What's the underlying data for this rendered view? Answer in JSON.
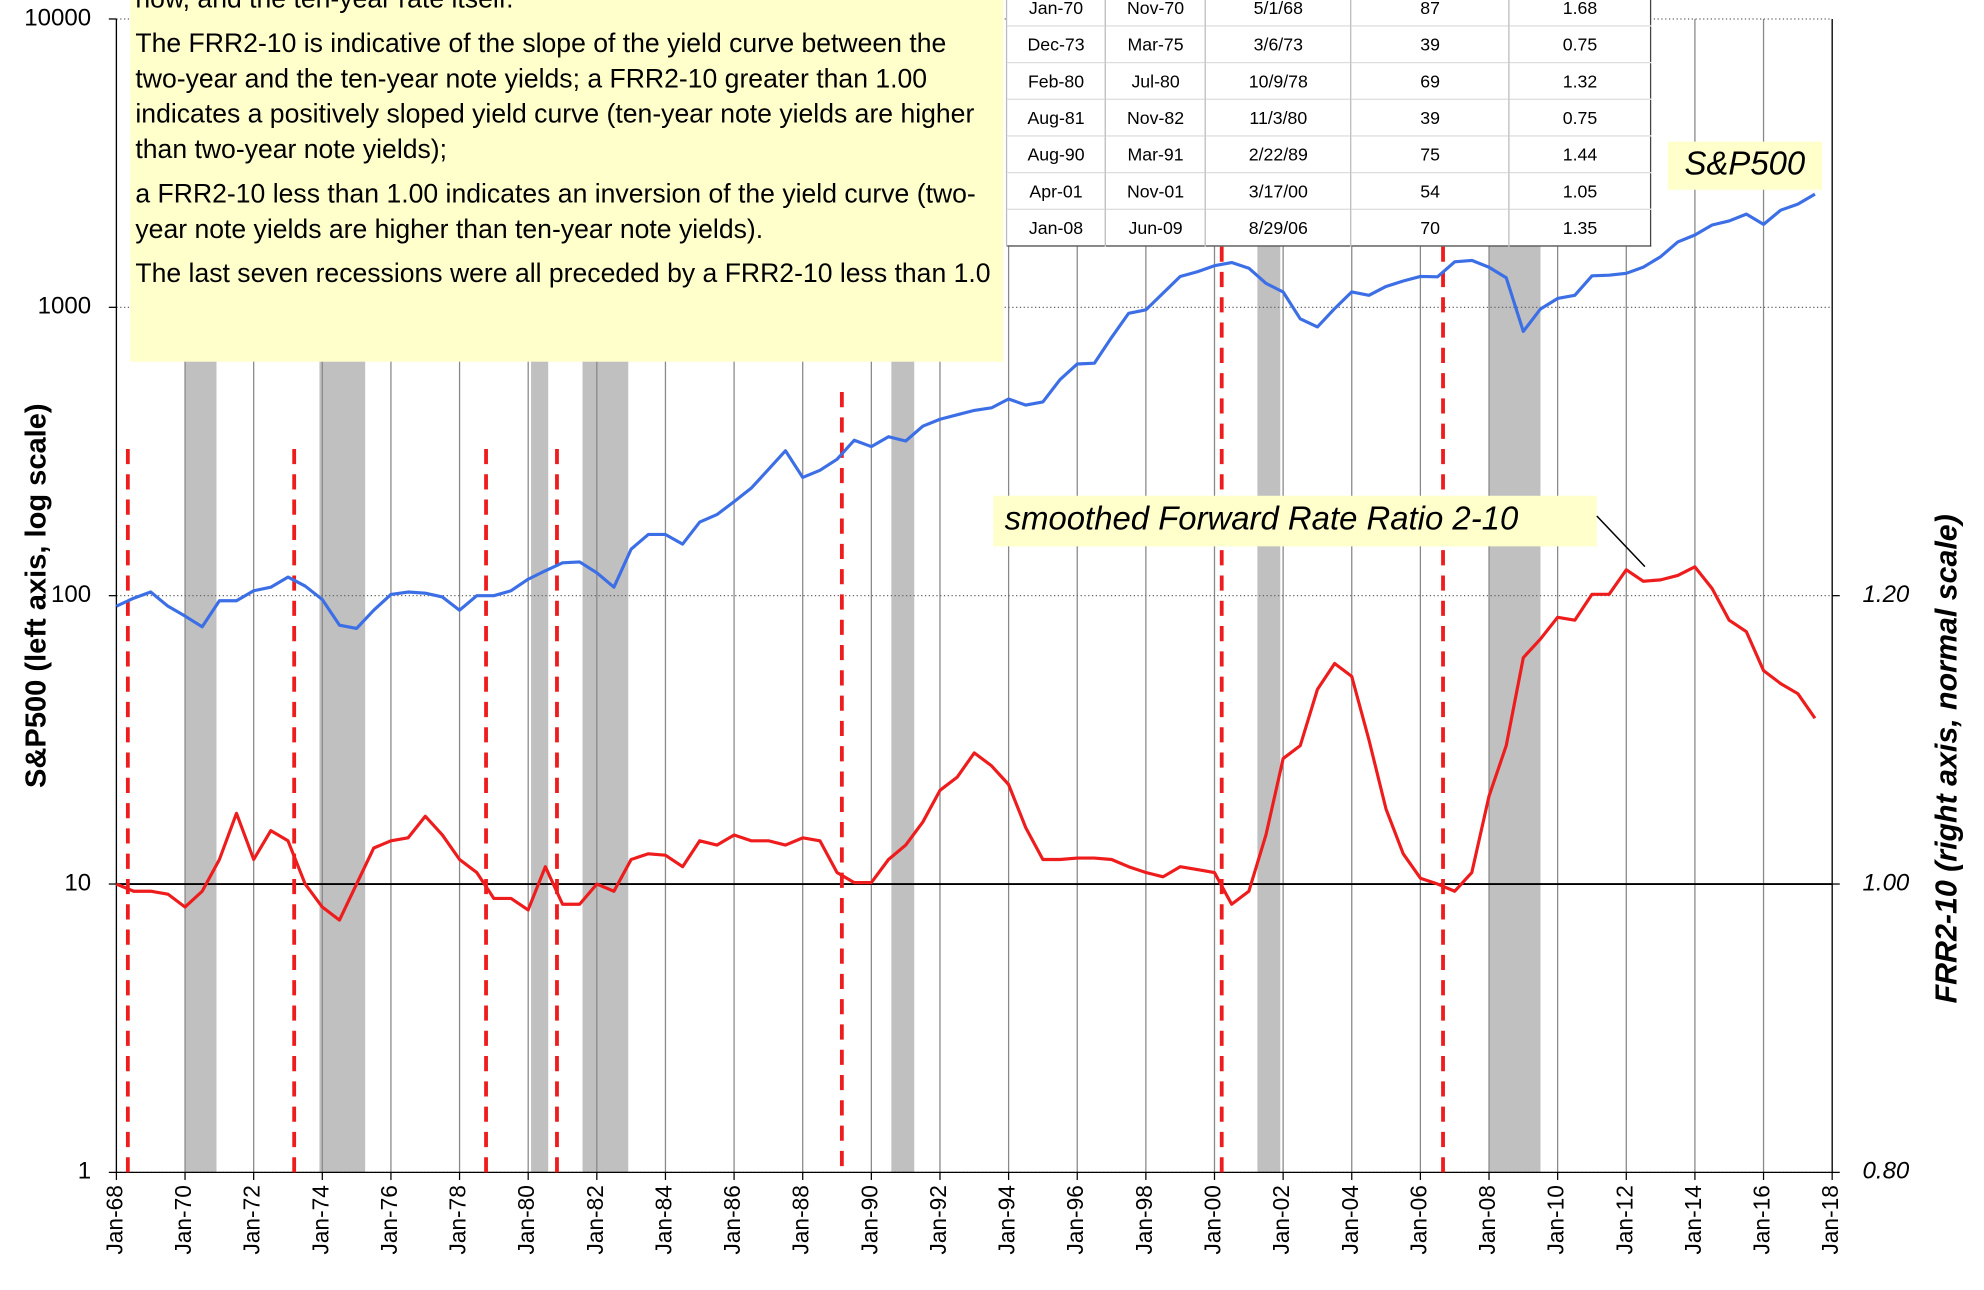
{
  "chart_data": {
    "type": "line",
    "ylog": true,
    "grid": true,
    "y_label": "S&P500  (left axis, log scale)",
    "y2_label": "FRR2-10  (right axis, normal scale)",
    "notes": [
      "now, and the ten-year rate itself.",
      "The FRR2-10  is indicative of the slope of the yield curve between the two-year and the ten-year note yields; a FRR2-10 greater than 1.00 indicates a positively sloped yield curve (ten-year note yields are higher than two-year note yields);",
      "a FRR2-10 less than 1.00 indicates an inversion of the yield curve (two-year note yields are higher than ten-year note yields).",
      "The last seven recessions were all preceded by a FRR2-10 less than 1.0"
    ],
    "table": [
      [
        "Jan-70",
        "Nov-70",
        "5/1/68",
        "87",
        "1.68"
      ],
      [
        "Dec-73",
        "Mar-75",
        "3/6/73",
        "39",
        "0.75"
      ],
      [
        "Feb-80",
        "Jul-80",
        "10/9/78",
        "69",
        "1.32"
      ],
      [
        "Aug-81",
        "Nov-82",
        "11/3/80",
        "39",
        "0.75"
      ],
      [
        "Aug-90",
        "Mar-91",
        "2/22/89",
        "75",
        "1.44"
      ],
      [
        "Apr-01",
        "Nov-01",
        "3/17/00",
        "54",
        "1.05"
      ],
      [
        "Jan-08",
        "Jun-09",
        "8/29/06",
        "70",
        "1.35"
      ]
    ],
    "xlim": [
      "Jan-68",
      "Jan-18"
    ],
    "xticks": [
      "Jan-68",
      "Jan-70",
      "Jan-72",
      "Jan-74",
      "Jan-76",
      "Jan-78",
      "Jan-80",
      "Jan-82",
      "Jan-84",
      "Jan-86",
      "Jan-88",
      "Jan-90",
      "Jan-92",
      "Jan-94",
      "Jan-96",
      "Jan-98",
      "Jan-00",
      "Jan-02",
      "Jan-04",
      "Jan-06",
      "Jan-08",
      "Jan-10",
      "Jan-12",
      "Jan-14",
      "Jan-16",
      "Jan-18"
    ],
    "ylim": [
      1,
      10000
    ],
    "yticks": [
      1,
      10,
      100,
      1000,
      10000
    ],
    "y2lim": [
      0.8,
      1.6
    ],
    "y2ticks": [
      {
        "value": 0.8,
        "label": "0.80"
      },
      {
        "value": 1.0,
        "label": "1.00"
      },
      {
        "value": 1.2,
        "label": "1.20"
      }
    ],
    "x": [
      "Jan-68",
      "Jul-68",
      "Jan-69",
      "Jul-69",
      "Jan-70",
      "Jul-70",
      "Jan-71",
      "Jul-71",
      "Jan-72",
      "Jul-72",
      "Jan-73",
      "Jul-73",
      "Jan-74",
      "Jul-74",
      "Jan-75",
      "Jul-75",
      "Jan-76",
      "Jul-76",
      "Jan-77",
      "Jul-77",
      "Jan-78",
      "Jul-78",
      "Jan-79",
      "Jul-79",
      "Jan-80",
      "Jul-80",
      "Jan-81",
      "Jul-81",
      "Jan-82",
      "Jul-82",
      "Jan-83",
      "Jul-83",
      "Jan-84",
      "Jul-84",
      "Jan-85",
      "Jul-85",
      "Jan-86",
      "Jul-86",
      "Jan-87",
      "Jul-87",
      "Jan-88",
      "Jul-88",
      "Jan-89",
      "Jul-89",
      "Jan-90",
      "Jul-90",
      "Jan-91",
      "Jul-91",
      "Jan-92",
      "Jul-92",
      "Jan-93",
      "Jul-93",
      "Jan-94",
      "Jul-94",
      "Jan-95",
      "Jul-95",
      "Jan-96",
      "Jul-96",
      "Jan-97",
      "Jul-97",
      "Jan-98",
      "Jul-98",
      "Jan-99",
      "Jul-99",
      "Jan-00",
      "Jul-00",
      "Jan-01",
      "Jul-01",
      "Jan-02",
      "Jul-02",
      "Jan-03",
      "Jul-03",
      "Jan-04",
      "Jul-04",
      "Jan-05",
      "Jul-05",
      "Jan-06",
      "Jul-06",
      "Jan-07",
      "Jul-07",
      "Jan-08",
      "Jul-08",
      "Jan-09",
      "Jul-09",
      "Jan-10",
      "Jul-10",
      "Jan-11",
      "Jul-11",
      "Jan-12",
      "Jul-12",
      "Jan-13",
      "Jul-13",
      "Jan-14",
      "Jul-14",
      "Jan-15",
      "Jul-15",
      "Jan-16",
      "Jul-16",
      "Jan-17",
      "Jul-17"
    ],
    "series": [
      {
        "name": "S&P500",
        "color": "#3c6fe6",
        "values": [
          92,
          98,
          103,
          92,
          85,
          78,
          96,
          96,
          104,
          107,
          116,
          108,
          97,
          79,
          77,
          89,
          101,
          103,
          102,
          99,
          89,
          100,
          100,
          104,
          114,
          122,
          130,
          131,
          120,
          107,
          145,
          163,
          163,
          151,
          180,
          191,
          212,
          236,
          274,
          318,
          257,
          272,
          297,
          346,
          329,
          356,
          344,
          387,
          409,
          424,
          439,
          448,
          481,
          458,
          470,
          562,
          636,
          640,
          786,
          954,
          980,
          1120,
          1280,
          1328,
          1394,
          1430,
          1366,
          1211,
          1130,
          912,
          855,
          990,
          1131,
          1101,
          1181,
          1234,
          1280,
          1276,
          1438,
          1455,
          1378,
          1267,
          825,
          987,
          1073,
          1101,
          1286,
          1292,
          1312,
          1379,
          1498,
          1685,
          1782,
          1930,
          1994,
          2104,
          1940,
          2173,
          2279,
          2470
        ]
      },
      {
        "name": "smoothed Forward Rate Ratio 2-10",
        "color": "#ee1c1c",
        "axis": "y2",
        "values": [
          1.0,
          0.995,
          0.995,
          0.993,
          0.984,
          0.995,
          1.017,
          1.049,
          1.017,
          1.037,
          1.03,
          1.0,
          0.984,
          0.975,
          1.0,
          1.025,
          1.03,
          1.032,
          1.047,
          1.034,
          1.017,
          1.008,
          0.99,
          0.99,
          0.982,
          1.012,
          0.986,
          0.986,
          1.0,
          0.995,
          1.017,
          1.021,
          1.02,
          1.012,
          1.03,
          1.027,
          1.034,
          1.03,
          1.03,
          1.027,
          1.032,
          1.03,
          1.008,
          1.001,
          1.001,
          1.017,
          1.027,
          1.043,
          1.065,
          1.074,
          1.091,
          1.082,
          1.069,
          1.039,
          1.017,
          1.017,
          1.018,
          1.018,
          1.017,
          1.012,
          1.008,
          1.005,
          1.012,
          1.01,
          1.008,
          0.986,
          0.995,
          1.034,
          1.087,
          1.096,
          1.135,
          1.153,
          1.144,
          1.1,
          1.052,
          1.021,
          1.004,
          1.0,
          0.995,
          1.008,
          1.061,
          1.096,
          1.157,
          1.17,
          1.185,
          1.183,
          1.201,
          1.201,
          1.218,
          1.21,
          1.211,
          1.214,
          1.22,
          1.205,
          1.183,
          1.175,
          1.148,
          1.139,
          1.132,
          1.115
        ]
      }
    ]
  }
}
